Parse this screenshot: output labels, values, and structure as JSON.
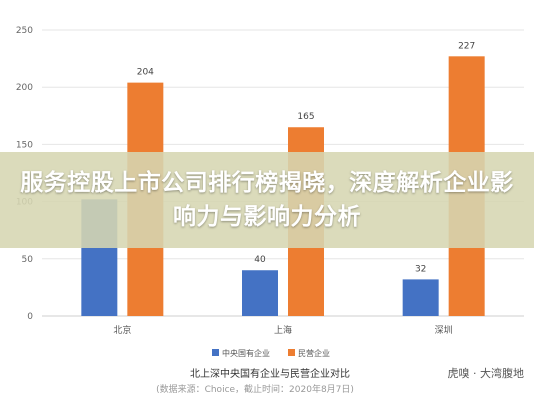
{
  "headline": "服务控股上市公司排行榜揭晓，深度解析企业影响力与影响力分析",
  "brand": "虎嗅 · 大湾腹地",
  "chart_data": {
    "type": "bar",
    "title": "北上深中央国有企业与民营企业对比",
    "source": "(数据来源：Choice，截止时间：2020年8月7日)",
    "categories": [
      "北京",
      "上海",
      "深圳"
    ],
    "series": [
      {
        "name": "中央国有企业",
        "values": [
          102,
          40,
          32
        ],
        "color": "#4472c4"
      },
      {
        "name": "民营企业",
        "values": [
          204,
          165,
          227
        ],
        "color": "#ed7d31"
      }
    ],
    "ylim": [
      0,
      250
    ],
    "yticks": [
      0,
      50,
      100,
      150,
      200,
      250
    ],
    "grid": true,
    "legend": "bottom"
  }
}
